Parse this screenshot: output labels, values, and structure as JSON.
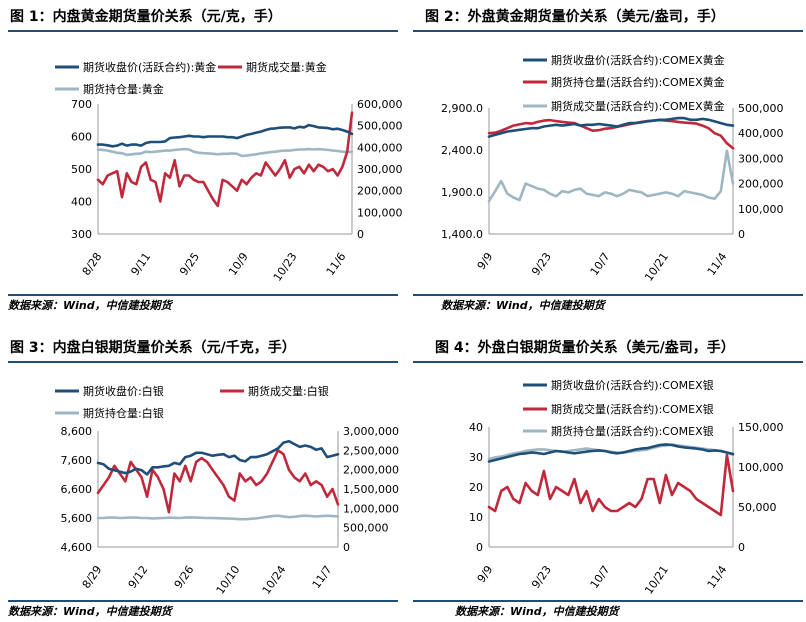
{
  "chart_data": [
    {
      "type": "line",
      "title": "图 1：内盘黄金期货量价关系（元/克，手）",
      "source": "数据来源：Wind，中信建投期货",
      "x_ticks": [
        "8/28",
        "9/11",
        "9/25",
        "10/9",
        "10/23",
        "11/6"
      ],
      "left_axis": {
        "min": 300,
        "max": 700,
        "ticks": [
          "300",
          "400",
          "500",
          "600",
          "700"
        ]
      },
      "right_axis": {
        "min": 0,
        "max": 600000,
        "ticks": [
          "0",
          "100,000",
          "200,000",
          "300,000",
          "400,000",
          "500,000",
          "600,000"
        ]
      },
      "series": [
        {
          "name": "期货收盘价(活跃合约):黄金",
          "axis": "left",
          "color": "#1f4e79",
          "values": [
            575,
            575,
            573,
            570,
            572,
            578,
            572,
            575,
            575,
            572,
            580,
            583,
            583,
            583,
            585,
            595,
            597,
            598,
            600,
            602,
            600,
            600,
            598,
            600,
            600,
            600,
            600,
            598,
            598,
            595,
            600,
            605,
            608,
            612,
            615,
            620,
            624,
            625,
            627,
            628,
            628,
            625,
            630,
            628,
            635,
            632,
            628,
            627,
            626,
            622,
            624,
            620,
            615,
            608
          ]
        },
        {
          "name": "期货成交量:黄金",
          "axis": "right",
          "color": "#c0293b",
          "values": [
            250000,
            230000,
            270000,
            280000,
            290000,
            170000,
            280000,
            240000,
            230000,
            310000,
            330000,
            250000,
            240000,
            150000,
            280000,
            260000,
            340000,
            220000,
            270000,
            270000,
            250000,
            240000,
            240000,
            200000,
            160000,
            130000,
            250000,
            240000,
            220000,
            200000,
            250000,
            230000,
            260000,
            280000,
            270000,
            330000,
            300000,
            270000,
            300000,
            340000,
            260000,
            300000,
            310000,
            280000,
            320000,
            290000,
            320000,
            310000,
            290000,
            300000,
            270000,
            310000,
            380000,
            560000
          ]
        },
        {
          "name": "期货持仓量:黄金",
          "axis": "right",
          "color": "#9fb6c3",
          "values": [
            390000,
            388000,
            385000,
            380000,
            375000,
            373000,
            365000,
            368000,
            370000,
            372000,
            380000,
            378000,
            380000,
            382000,
            385000,
            385000,
            388000,
            390000,
            392000,
            390000,
            380000,
            375000,
            373000,
            372000,
            370000,
            368000,
            370000,
            370000,
            372000,
            370000,
            360000,
            362000,
            365000,
            368000,
            372000,
            375000,
            378000,
            380000,
            383000,
            385000,
            385000,
            388000,
            390000,
            390000,
            392000,
            390000,
            392000,
            390000,
            388000,
            385000,
            383000,
            380000,
            378000,
            380000
          ]
        }
      ]
    },
    {
      "type": "line",
      "title": "图 2：外盘黄金期货量价关系（美元/盎司，手）",
      "source": "数据来源：Wind，中信建投期货",
      "x_ticks": [
        "9/9",
        "9/23",
        "10/7",
        "10/21",
        "11/4"
      ],
      "left_axis": {
        "min": 1400,
        "max": 2900,
        "ticks": [
          "1,400.0",
          "1,900.0",
          "2,400.0",
          "2,900.0"
        ]
      },
      "right_axis": {
        "min": 0,
        "max": 500000,
        "ticks": [
          "0",
          "100,000",
          "200,000",
          "300,000",
          "400,000",
          "500,000"
        ]
      },
      "series": [
        {
          "name": "期货收盘价(活跃合约):COMEX黄金",
          "axis": "left",
          "color": "#1f4e79",
          "values": [
            2560,
            2580,
            2600,
            2620,
            2630,
            2640,
            2650,
            2660,
            2660,
            2680,
            2690,
            2700,
            2690,
            2700,
            2710,
            2690,
            2700,
            2700,
            2710,
            2700,
            2690,
            2680,
            2700,
            2720,
            2720,
            2730,
            2740,
            2750,
            2760,
            2760,
            2770,
            2780,
            2780,
            2760,
            2760,
            2770,
            2760,
            2740,
            2720,
            2700,
            2690
          ]
        },
        {
          "name": "期货持仓量(活跃合约):COMEX黄金",
          "axis": "right",
          "color": "#c0293b",
          "values": [
            400000,
            402000,
            410000,
            420000,
            430000,
            435000,
            440000,
            438000,
            445000,
            450000,
            452000,
            448000,
            445000,
            442000,
            440000,
            430000,
            420000,
            410000,
            412000,
            418000,
            420000,
            425000,
            430000,
            435000,
            440000,
            445000,
            448000,
            450000,
            452000,
            450000,
            448000,
            445000,
            442000,
            440000,
            438000,
            430000,
            420000,
            400000,
            390000,
            360000,
            340000
          ]
        },
        {
          "name": "期货成交量(活跃合约):COMEX黄金",
          "axis": "right",
          "color": "#9fb6c3",
          "values": [
            130000,
            170000,
            210000,
            160000,
            145000,
            135000,
            200000,
            190000,
            180000,
            175000,
            160000,
            150000,
            170000,
            165000,
            175000,
            180000,
            160000,
            155000,
            150000,
            165000,
            160000,
            150000,
            160000,
            175000,
            170000,
            165000,
            150000,
            155000,
            160000,
            165000,
            160000,
            150000,
            170000,
            165000,
            160000,
            155000,
            145000,
            140000,
            170000,
            330000,
            200000
          ]
        }
      ]
    },
    {
      "type": "line",
      "title": "图 3：内盘白银期货量价关系（元/千克，手）",
      "source": "数据来源：Wind，中信建投期货",
      "x_ticks": [
        "8/29",
        "9/12",
        "9/26",
        "10/10",
        "10/24",
        "11/7"
      ],
      "left_axis": {
        "min": 4600,
        "max": 8600,
        "ticks": [
          "4,600",
          "5,600",
          "6,600",
          "7,600",
          "8,600"
        ]
      },
      "right_axis": {
        "min": 0,
        "max": 3000000,
        "ticks": [
          "0",
          "500,000",
          "1,000,000",
          "1,500,000",
          "2,000,000",
          "2,500,000",
          "3,000,000"
        ]
      },
      "series": [
        {
          "name": "期货收盘价:白银",
          "axis": "left",
          "color": "#1f4e79",
          "values": [
            7500,
            7450,
            7300,
            7250,
            7200,
            7150,
            7200,
            7300,
            7250,
            7100,
            7350,
            7350,
            7380,
            7400,
            7500,
            7450,
            7700,
            7750,
            7850,
            7850,
            7800,
            7750,
            7780,
            7800,
            7700,
            7750,
            7600,
            7550,
            7700,
            7700,
            7750,
            7800,
            7900,
            8000,
            8200,
            8250,
            8150,
            8050,
            8100,
            8050,
            7950,
            8000,
            7700,
            7750,
            7800
          ]
        },
        {
          "name": "期货成交量:白银",
          "axis": "right",
          "color": "#c0293b",
          "values": [
            1400000,
            1600000,
            1800000,
            2100000,
            1900000,
            1700000,
            2200000,
            2000000,
            1800000,
            1300000,
            2000000,
            1800000,
            1500000,
            900000,
            1900000,
            1700000,
            2100000,
            1700000,
            2200000,
            2300000,
            2200000,
            2000000,
            1800000,
            1600000,
            1300000,
            1200000,
            1900000,
            1700000,
            1800000,
            1600000,
            1700000,
            1900000,
            2200000,
            2500000,
            2400000,
            2000000,
            1800000,
            1700000,
            1900000,
            1600000,
            1700000,
            1600000,
            1300000,
            1500000,
            1100000
          ]
        },
        {
          "name": "期货持仓量:白银",
          "axis": "right",
          "color": "#9fb6c3",
          "values": [
            750000,
            750000,
            760000,
            760000,
            750000,
            755000,
            760000,
            760000,
            750000,
            750000,
            740000,
            745000,
            750000,
            760000,
            755000,
            750000,
            760000,
            765000,
            760000,
            755000,
            750000,
            750000,
            745000,
            740000,
            735000,
            730000,
            720000,
            720000,
            730000,
            740000,
            760000,
            780000,
            800000,
            810000,
            790000,
            770000,
            780000,
            800000,
            810000,
            800000,
            790000,
            800000,
            810000,
            800000,
            790000
          ]
        }
      ]
    },
    {
      "type": "line",
      "title": "图 4：外盘白银期货量价关系（美元/盎司，手）",
      "source": "数据来源：Wind，中信建投期货",
      "x_ticks": [
        "9/9",
        "9/23",
        "10/7",
        "10/21",
        "11/4"
      ],
      "left_axis": {
        "min": 0,
        "max": 40,
        "ticks": [
          "0",
          "10",
          "20",
          "30",
          "40"
        ]
      },
      "right_axis": {
        "min": 0,
        "max": 150000,
        "ticks": [
          "0",
          "50,000",
          "100,000",
          "150,000"
        ]
      },
      "series": [
        {
          "name": "期货收盘价(活跃合约):COMEX银",
          "axis": "left",
          "color": "#1f4e79",
          "values": [
            28.5,
            29,
            29.5,
            30,
            30.5,
            31,
            31.2,
            31.5,
            31.3,
            31,
            31.5,
            32,
            31.8,
            31.5,
            31.2,
            31.5,
            31.8,
            32,
            32.2,
            32,
            31.5,
            31.2,
            31.5,
            32,
            32.5,
            32.8,
            33,
            33.5,
            34,
            34.2,
            34,
            33.5,
            33.2,
            33,
            32.8,
            32.5,
            32,
            32.2,
            32,
            31.5,
            31
          ]
        },
        {
          "name": "期货成交量(活跃合约):COMEX银",
          "axis": "right",
          "color": "#c0293b",
          "values": [
            50000,
            45000,
            70000,
            75000,
            60000,
            55000,
            80000,
            70000,
            65000,
            95000,
            60000,
            75000,
            70000,
            65000,
            85000,
            55000,
            70000,
            45000,
            60000,
            50000,
            45000,
            45000,
            50000,
            55000,
            50000,
            60000,
            85000,
            85000,
            55000,
            90000,
            65000,
            80000,
            75000,
            70000,
            60000,
            55000,
            50000,
            45000,
            40000,
            115000,
            70000
          ]
        },
        {
          "name": "期货持仓量(活跃合约):COMEX银",
          "axis": "right",
          "color": "#9fb6c3",
          "values": [
            110000,
            112000,
            113000,
            115000,
            117000,
            118000,
            120000,
            121000,
            122000,
            122000,
            121000,
            120000,
            119000,
            120000,
            121000,
            122000,
            123000,
            122000,
            121000,
            120000,
            119000,
            118000,
            118000,
            119000,
            120000,
            121000,
            122000,
            124000,
            126000,
            127000,
            128000,
            127000,
            126000,
            125000,
            124000,
            123000,
            122000,
            121000,
            120000,
            118000,
            115000
          ]
        }
      ]
    }
  ]
}
